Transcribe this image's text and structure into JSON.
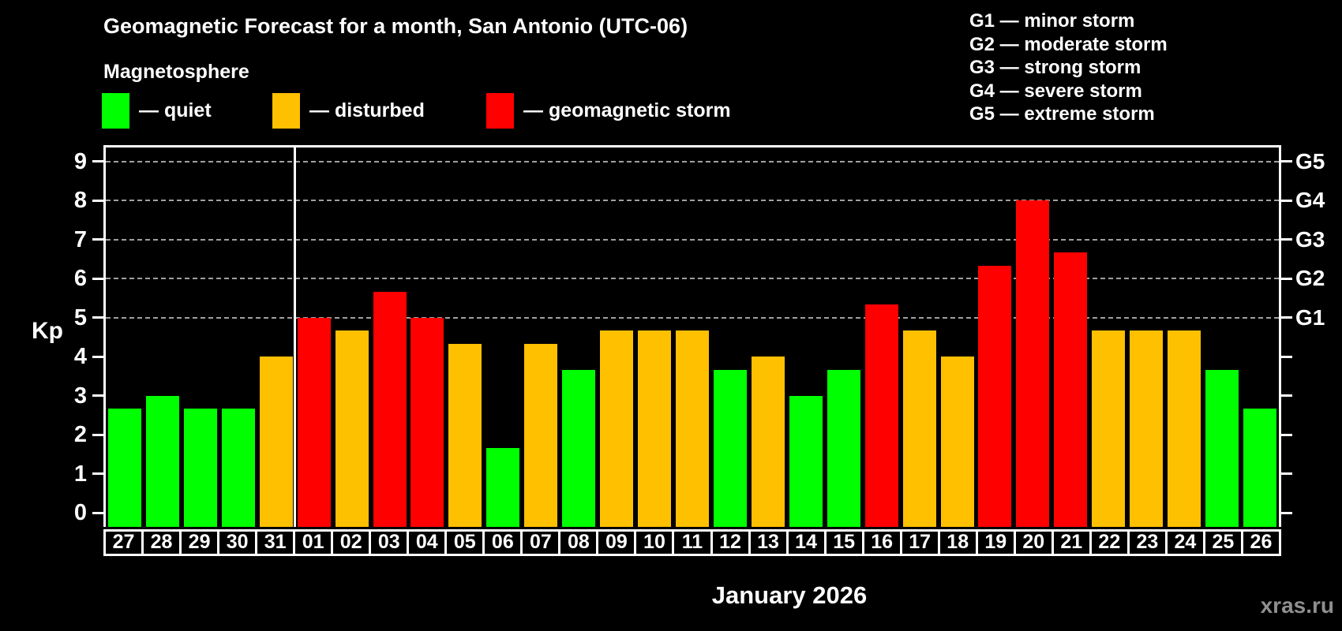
{
  "header": {
    "title": "Geomagnetic Forecast for a month, San Antonio (UTC-06)",
    "subtitle": "Magnetosphere"
  },
  "legend": {
    "items": [
      {
        "key": "quiet",
        "label": "— quiet"
      },
      {
        "key": "disturbed",
        "label": "— disturbed"
      },
      {
        "key": "storm",
        "label": "— geomagnetic storm"
      }
    ]
  },
  "colors": {
    "quiet": "#00ff00",
    "disturbed": "#ffc000",
    "storm": "#ff0000",
    "grid": "#a0a0a0",
    "frame": "#ffffff",
    "watermark": "#8f8f8f",
    "background": "#000000"
  },
  "g_scale": {
    "items": [
      {
        "code": "G1",
        "label": "G1 — minor storm",
        "kp": 5
      },
      {
        "code": "G2",
        "label": "G2 — moderate storm",
        "kp": 6
      },
      {
        "code": "G3",
        "label": "G3 — strong storm",
        "kp": 7
      },
      {
        "code": "G4",
        "label": "G4 — severe storm",
        "kp": 8
      },
      {
        "code": "G5",
        "label": "G5 — extreme storm",
        "kp": 9
      }
    ]
  },
  "footer": {
    "watermark": "xras.ru"
  },
  "chart_data": {
    "type": "bar",
    "title": "Geomagnetic Forecast for a month, San Antonio (UTC-06)",
    "subtitle": "Magnetosphere",
    "xlabel": "January 2026",
    "ylabel": "Kp",
    "ylim": [
      0,
      9
    ],
    "y_ticks": [
      0,
      1,
      2,
      3,
      4,
      5,
      6,
      7,
      8,
      9
    ],
    "grid": "dashed horizontal gridlines at Kp 5,6,7,8,9 (G1–G5)",
    "legend_position": "top-left",
    "right_axis_labels": [
      "G1",
      "G2",
      "G3",
      "G4",
      "G5"
    ],
    "month_divider_after_index": 4,
    "categories": [
      "27",
      "28",
      "29",
      "30",
      "31",
      "01",
      "02",
      "03",
      "04",
      "05",
      "06",
      "07",
      "08",
      "09",
      "10",
      "11",
      "12",
      "13",
      "14",
      "15",
      "16",
      "17",
      "18",
      "19",
      "20",
      "21",
      "22",
      "23",
      "24",
      "25",
      "26"
    ],
    "values": [
      2.67,
      3.0,
      2.67,
      2.67,
      4.0,
      5.0,
      4.67,
      5.67,
      5.0,
      4.33,
      1.67,
      4.33,
      3.67,
      4.67,
      4.67,
      4.67,
      3.67,
      4.0,
      3.0,
      3.67,
      5.33,
      4.67,
      4.0,
      6.33,
      8.0,
      6.67,
      4.67,
      4.67,
      4.67,
      3.67,
      2.67
    ],
    "statuses": [
      "quiet",
      "quiet",
      "quiet",
      "quiet",
      "disturbed",
      "storm",
      "disturbed",
      "storm",
      "storm",
      "disturbed",
      "quiet",
      "disturbed",
      "quiet",
      "disturbed",
      "disturbed",
      "disturbed",
      "quiet",
      "disturbed",
      "quiet",
      "quiet",
      "storm",
      "disturbed",
      "disturbed",
      "storm",
      "storm",
      "storm",
      "disturbed",
      "disturbed",
      "disturbed",
      "quiet",
      "quiet"
    ]
  }
}
